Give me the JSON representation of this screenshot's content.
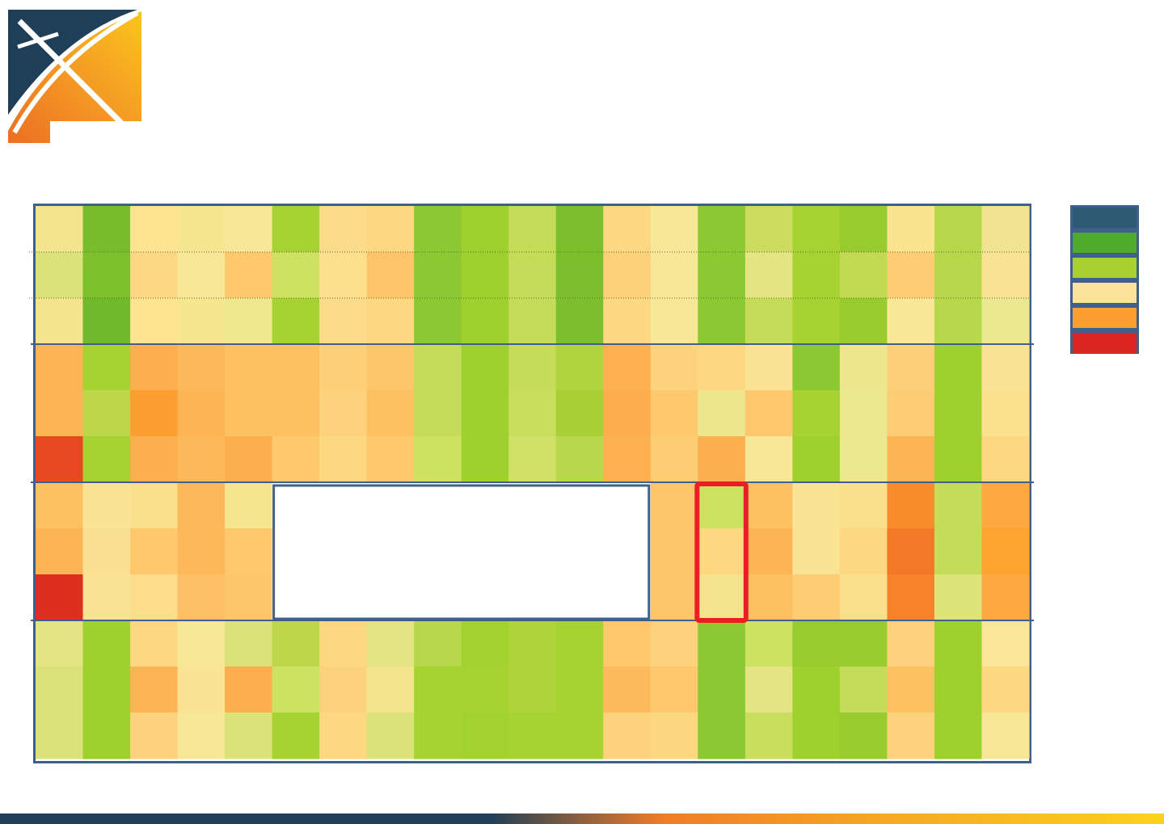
{
  "logo": {
    "icon": "x-arc-logo-icon",
    "colors": {
      "navy": "#1f3e58",
      "orange": "#f18a21",
      "yellow": "#fbbf1c"
    }
  },
  "legend": {
    "colors": [
      "#2e5b73",
      "#4fab2b",
      "#a8d030",
      "#fbe49a",
      "#fba030",
      "#dc2420"
    ]
  },
  "chart_data": {
    "type": "heatmap",
    "columns": 21,
    "rows": 12,
    "row_groups": [
      3,
      3,
      3,
      3
    ],
    "colors": [
      [
        "#f4e48e",
        "#78be2c",
        "#fde490",
        "#f6e690",
        "#f8e796",
        "#a6d232",
        "#fcdb8a",
        "#fdd880",
        "#8cc832",
        "#9fd12e",
        "#c4dc58",
        "#7cbe2c",
        "#fdd882",
        "#f8e796",
        "#8cc832",
        "#cddc5e",
        "#a6d232",
        "#98cc2e",
        "#fbe490",
        "#b6d84a",
        "#f0e490"
      ],
      [
        "#dbe27a",
        "#7cc02c",
        "#fdd884",
        "#f8e796",
        "#fdc96c",
        "#cde260",
        "#fde08c",
        "#fdc46a",
        "#8cc832",
        "#9fd12e",
        "#c4dc58",
        "#7cbe2c",
        "#fdd07a",
        "#f8e796",
        "#8cc832",
        "#e4e684",
        "#a6d232",
        "#c0da52",
        "#fdcd74",
        "#b6d84a",
        "#fbe394"
      ],
      [
        "#f4e48e",
        "#70b92a",
        "#fde490",
        "#f6e690",
        "#f0e88c",
        "#a6d232",
        "#fcdb8a",
        "#fdd880",
        "#8cc832",
        "#9fd12e",
        "#c4dc58",
        "#7cbe2c",
        "#fdd882",
        "#f8e796",
        "#8cc832",
        "#c4dc58",
        "#a6d232",
        "#98cc2e",
        "#f8e796",
        "#b6d84a",
        "#ece890"
      ],
      [
        "#fdb454",
        "#a6d232",
        "#fdae4e",
        "#fdb85a",
        "#fdc162",
        "#fdc162",
        "#fdcf78",
        "#fdc66a",
        "#c4dc58",
        "#9fd12e",
        "#c4dc58",
        "#b0d43e",
        "#fdb050",
        "#fdd27c",
        "#fdd880",
        "#fbe394",
        "#8cc832",
        "#ece68c",
        "#fdcf78",
        "#9fd12e",
        "#fbe394"
      ],
      [
        "#fdb454",
        "#bcd84a",
        "#fd9f30",
        "#fdb454",
        "#fdc162",
        "#fdc162",
        "#fdd27c",
        "#fdc162",
        "#c4dc58",
        "#9fd12e",
        "#c8de5c",
        "#a8d034",
        "#fdad4c",
        "#fdc96c",
        "#ece68c",
        "#fdc96c",
        "#a6d232",
        "#ece890",
        "#fdcd74",
        "#9fd12e",
        "#fbe18e"
      ],
      [
        "#e84820",
        "#a6d232",
        "#fdae4e",
        "#fdb85a",
        "#fdae4e",
        "#fdc96c",
        "#fdd880",
        "#fdc96c",
        "#cde260",
        "#9fd12e",
        "#d0e266",
        "#b6d84a",
        "#fdb050",
        "#fdcd74",
        "#fdae4e",
        "#f8e796",
        "#9fd12e",
        "#ece890",
        "#fdb454",
        "#9fd12e",
        "#fdd880"
      ],
      [
        "#fdc162",
        "#fbe394",
        "#fbe08c",
        "#fdb85a",
        "#f6e690",
        "#ffffff",
        "#ffffff",
        "#ffffff",
        "#ffffff",
        "#ffffff",
        "#ffffff",
        "#ffffff",
        "#ffffff",
        "#fdc66a",
        "#cde260",
        "#fdc162",
        "#fbe394",
        "#fbe08c",
        "#f98c2a",
        "#c4dc58",
        "#fda840"
      ],
      [
        "#fdb454",
        "#fbdf90",
        "#fdc96c",
        "#fdb85a",
        "#fdc96c",
        "#ffffff",
        "#ffffff",
        "#ffffff",
        "#ffffff",
        "#ffffff",
        "#ffffff",
        "#ffffff",
        "#ffffff",
        "#fdc66a",
        "#fdd880",
        "#fdb454",
        "#fbe394",
        "#fdd880",
        "#f27a26",
        "#c4dc58",
        "#fda430"
      ],
      [
        "#dd2f1f",
        "#fbe394",
        "#fbdd8a",
        "#fdc066",
        "#fdc66a",
        "#ffffff",
        "#ffffff",
        "#ffffff",
        "#ffffff",
        "#ffffff",
        "#ffffff",
        "#ffffff",
        "#ffffff",
        "#fdc66a",
        "#f4e48e",
        "#fdc162",
        "#fdcd74",
        "#fbe08c",
        "#f7822a",
        "#dde47a",
        "#fda840"
      ],
      [
        "#e4e484",
        "#9fd12e",
        "#fdd880",
        "#f8e796",
        "#dbe27a",
        "#bcd84a",
        "#fdd880",
        "#e4e484",
        "#b6d84a",
        "#a2d22e",
        "#aed43a",
        "#a6d232",
        "#fdc96c",
        "#fdd27c",
        "#8cc832",
        "#cde260",
        "#98cc2e",
        "#98cc2e",
        "#fdd27c",
        "#9fd12e",
        "#fbe79a"
      ],
      [
        "#dbe27a",
        "#9fd12e",
        "#fdb454",
        "#fbe394",
        "#fdae4e",
        "#cde260",
        "#fdd27c",
        "#f4e48e",
        "#a6d232",
        "#a6d232",
        "#aed43a",
        "#a6d232",
        "#fdbb5e",
        "#fdc96c",
        "#8cc832",
        "#e4e484",
        "#9fd12e",
        "#c4dc58",
        "#fdc162",
        "#9fd12e",
        "#fdd880"
      ],
      [
        "#dbe27a",
        "#9fd12e",
        "#fdd27c",
        "#f8e796",
        "#dbe27a",
        "#a6d232",
        "#fdd880",
        "#dbe27a",
        "#a6d232",
        "#a2d22e",
        "#a6d232",
        "#a6d232",
        "#fdd27c",
        "#fbd880",
        "#8cc832",
        "#c8de5c",
        "#9fd12e",
        "#98cc2e",
        "#fdd27c",
        "#9fd12e",
        "#f8e796"
      ]
    ],
    "masked_region": {
      "row_start": 6,
      "row_end": 8,
      "col_start": 5,
      "col_end": 12
    },
    "highlighted_region": {
      "row_start": 6,
      "row_end": 8,
      "col": 14,
      "color": "#ee1c25"
    },
    "dotted_lines_after_rows": [
      1,
      2
    ],
    "group_separator_color": "#3f5f8c"
  }
}
